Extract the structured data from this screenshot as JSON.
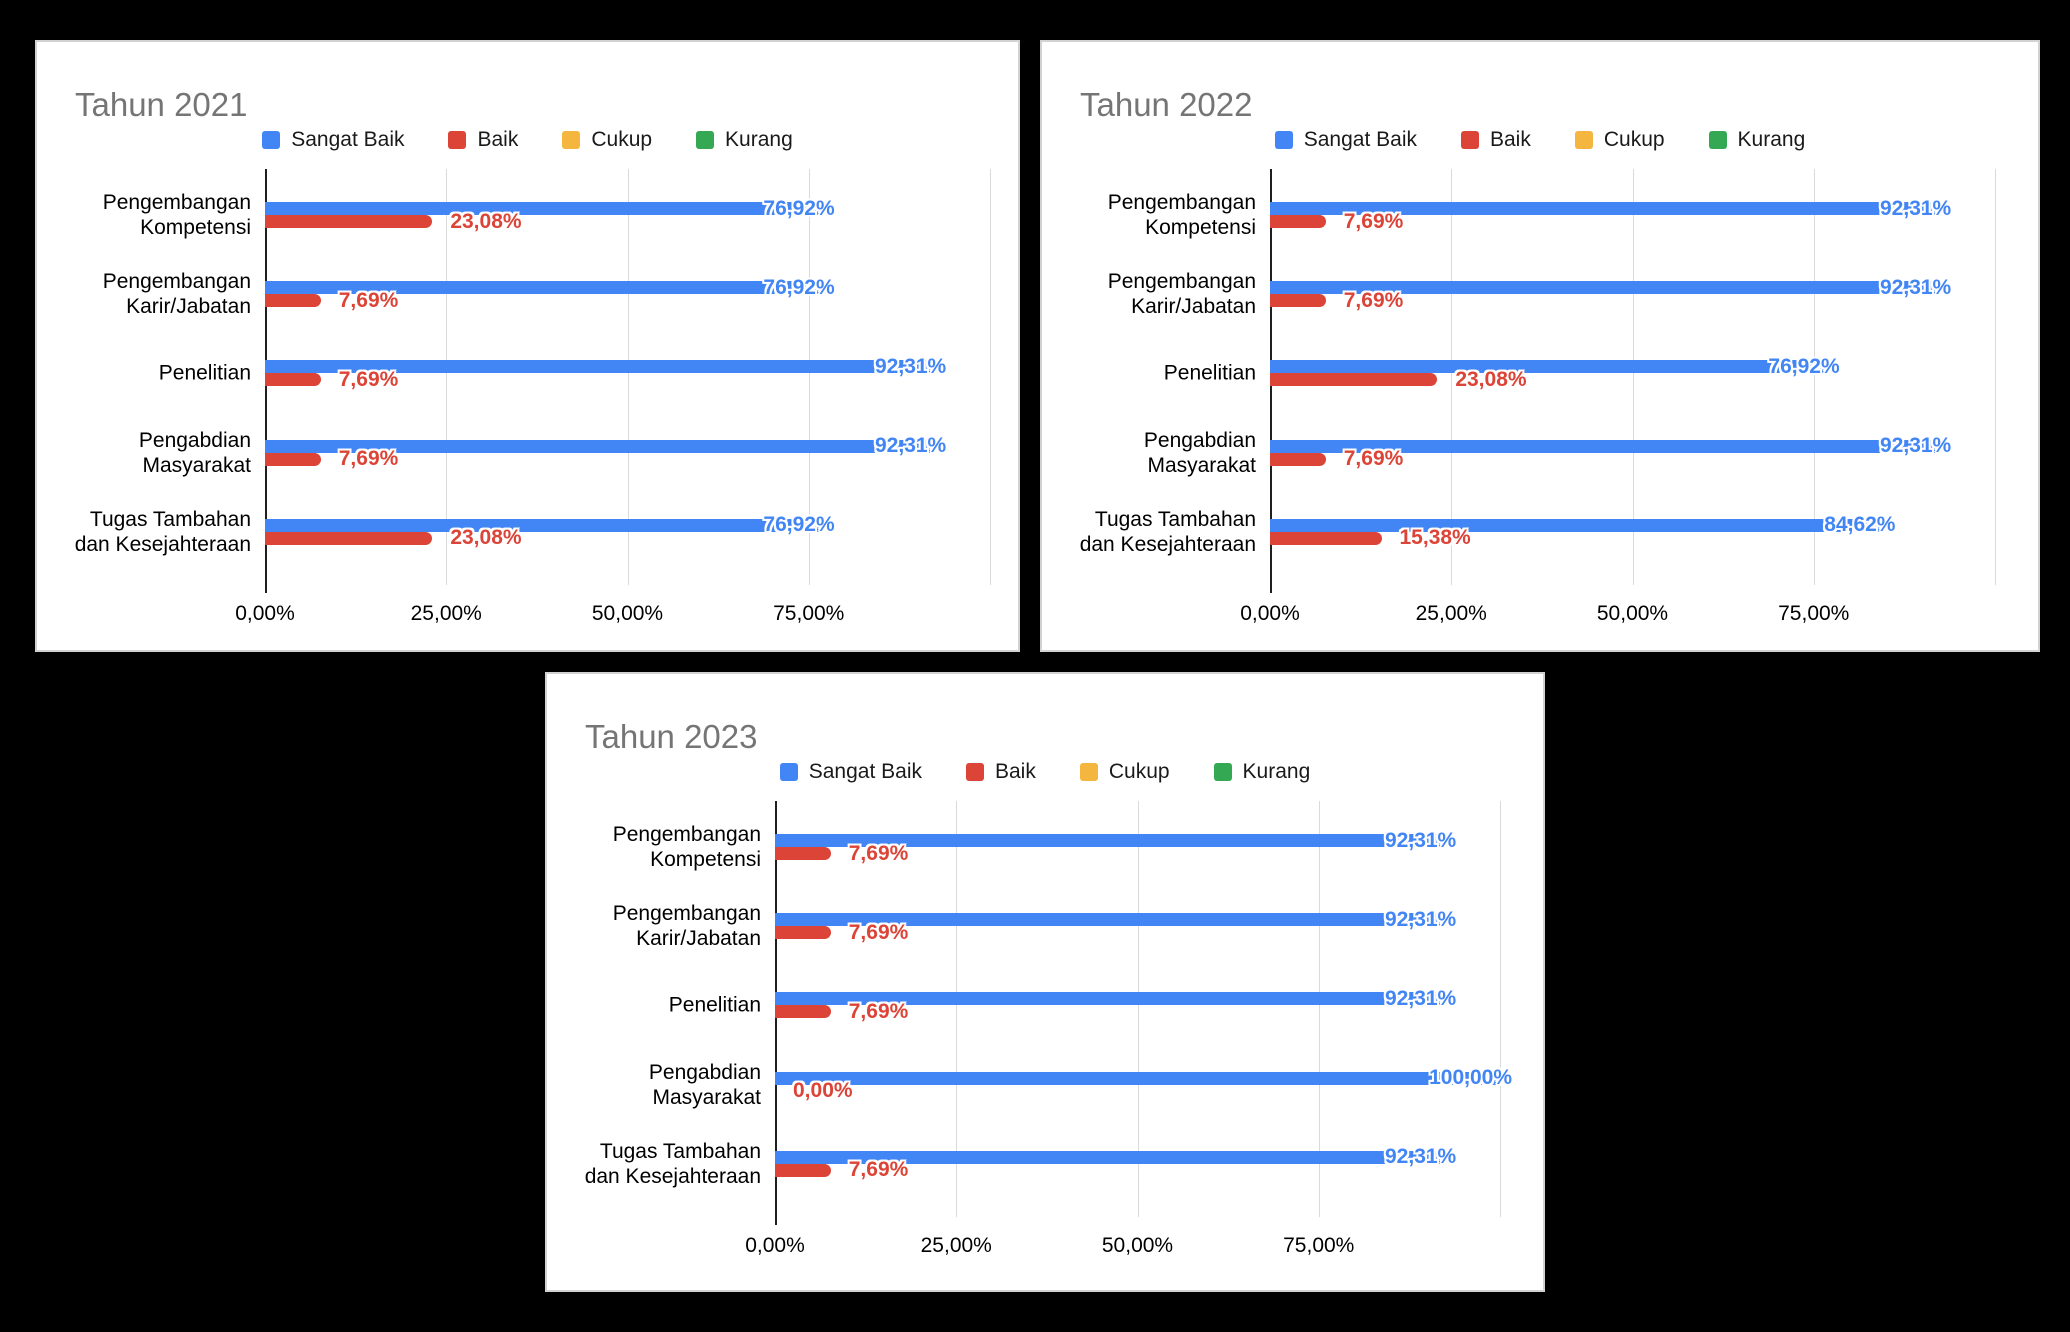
{
  "page": {
    "background": "#000000",
    "card_background": "#ffffff",
    "card_border": "#d2d2d2"
  },
  "colors": {
    "sangat_baik": "#4285F4",
    "baik": "#DB4437",
    "cukup": "#F4B63F",
    "kurang": "#34A853",
    "title_text": "#757575",
    "gridline": "#dadada",
    "axis_line": "#1f1f1f"
  },
  "series_colors": {
    "Sangat Baik": "#4285F4",
    "Baik": "#DB4437",
    "Cukup": "#F4B63F",
    "Kurang": "#34A853"
  },
  "chart_data": [
    {
      "type": "bar",
      "orientation": "horizontal",
      "title": "Tahun 2021",
      "legend": [
        "Sangat Baik",
        "Baik",
        "Cukup",
        "Kurang"
      ],
      "legend_position": "top-center",
      "grid": true,
      "xlim": [
        0,
        100
      ],
      "x_tick_labels": [
        "0,00%",
        "25,00%",
        "50,00%",
        "75,00%"
      ],
      "categories": [
        "Pengembangan\nKompetensi",
        "Pengembangan\nKarir/Jabatan",
        "Penelitian",
        "Pengabdian\nMasyarakat",
        "Tugas Tambahan\ndan Kesejahteraan"
      ],
      "series": [
        {
          "name": "Sangat Baik",
          "values": [
            76.92,
            76.92,
            92.31,
            92.31,
            76.92
          ],
          "labels": [
            "76,92%",
            "76,92%",
            "92,31%",
            "92,31%",
            "76,92%"
          ]
        },
        {
          "name": "Baik",
          "values": [
            23.08,
            7.69,
            7.69,
            7.69,
            23.08
          ],
          "labels": [
            "23,08%",
            "7,69%",
            "7,69%",
            "7,69%",
            "23,08%"
          ]
        }
      ]
    },
    {
      "type": "bar",
      "orientation": "horizontal",
      "title": "Tahun 2022",
      "legend": [
        "Sangat Baik",
        "Baik",
        "Cukup",
        "Kurang"
      ],
      "legend_position": "top-center",
      "grid": true,
      "xlim": [
        0,
        100
      ],
      "x_tick_labels": [
        "0,00%",
        "25,00%",
        "50,00%",
        "75,00%"
      ],
      "categories": [
        "Pengembangan\nKompetensi",
        "Pengembangan\nKarir/Jabatan",
        "Penelitian",
        "Pengabdian\nMasyarakat",
        "Tugas Tambahan\ndan Kesejahteraan"
      ],
      "series": [
        {
          "name": "Sangat Baik",
          "values": [
            92.31,
            92.31,
            76.92,
            92.31,
            84.62
          ],
          "labels": [
            "92,31%",
            "92,31%",
            "76,92%",
            "92,31%",
            "84,62%"
          ]
        },
        {
          "name": "Baik",
          "values": [
            7.69,
            7.69,
            23.08,
            7.69,
            15.38
          ],
          "labels": [
            "7,69%",
            "7,69%",
            "23,08%",
            "7,69%",
            "15,38%"
          ]
        }
      ]
    },
    {
      "type": "bar",
      "orientation": "horizontal",
      "title": "Tahun 2023",
      "legend": [
        "Sangat Baik",
        "Baik",
        "Cukup",
        "Kurang"
      ],
      "legend_position": "top-center",
      "grid": true,
      "xlim": [
        0,
        100
      ],
      "x_tick_labels": [
        "0,00%",
        "25,00%",
        "50,00%",
        "75,00%"
      ],
      "categories": [
        "Pengembangan\nKompetensi",
        "Pengembangan\nKarir/Jabatan",
        "Penelitian",
        "Pengabdian\nMasyarakat",
        "Tugas Tambahan\ndan Kesejahteraan"
      ],
      "series": [
        {
          "name": "Sangat Baik",
          "values": [
            92.31,
            92.31,
            92.31,
            100.0,
            92.31
          ],
          "labels": [
            "92,31%",
            "92,31%",
            "92,31%",
            "100,00%",
            "92,31%"
          ]
        },
        {
          "name": "Baik",
          "values": [
            7.69,
            7.69,
            7.69,
            0.0,
            7.69
          ],
          "labels": [
            "7,69%",
            "7,69%",
            "7,69%",
            "0,00%",
            "7,69%"
          ]
        }
      ]
    }
  ]
}
